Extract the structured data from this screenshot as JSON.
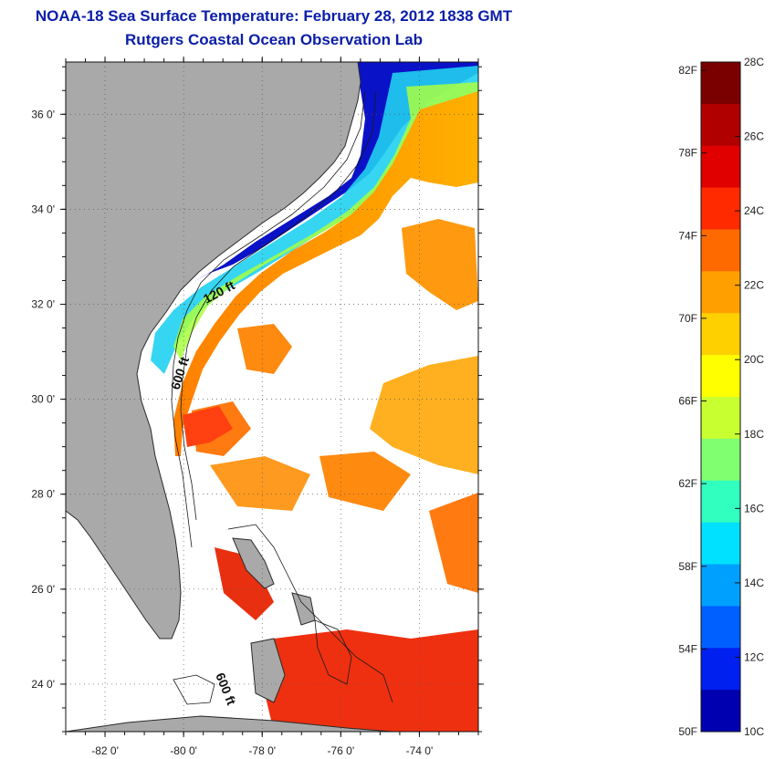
{
  "header": {
    "title": "NOAA-18 Sea Surface Temperature:  February 28, 2012 1838 GMT",
    "subtitle": "Rutgers Coastal Ocean Observation Lab"
  },
  "map": {
    "lon_range": [
      -83,
      -72.5
    ],
    "lat_range": [
      23,
      37.1
    ],
    "lon_ticks": [
      {
        "value": -82,
        "label": "-82 0'"
      },
      {
        "value": -80,
        "label": "-80 0'"
      },
      {
        "value": -78,
        "label": "-78 0'"
      },
      {
        "value": -76,
        "label": "-76 0'"
      },
      {
        "value": -74,
        "label": "-74 0'"
      }
    ],
    "lat_ticks": [
      {
        "value": 36,
        "label": "36 0'"
      },
      {
        "value": 34,
        "label": "34 0'"
      },
      {
        "value": 32,
        "label": "32 0'"
      },
      {
        "value": 30,
        "label": "30 0'"
      },
      {
        "value": 28,
        "label": "28 0'"
      },
      {
        "value": 26,
        "label": "26 0'"
      },
      {
        "value": 24,
        "label": "24 0'"
      }
    ],
    "grid": "dotted",
    "contour_labels": {
      "c120": "120 ft",
      "c600a": "600 ft",
      "c600b": "600 ft"
    },
    "colors": {
      "land": "#a9a9a9",
      "ocean_cloud": "#ffffff",
      "coast": "#2a2a2a"
    }
  },
  "colorbar": {
    "min_c": 10,
    "max_c": 28,
    "celsius_ticks": [
      {
        "value": 28,
        "label": "28C"
      },
      {
        "value": 26,
        "label": "26C"
      },
      {
        "value": 24,
        "label": "24C"
      },
      {
        "value": 22,
        "label": "22C"
      },
      {
        "value": 20,
        "label": "20C"
      },
      {
        "value": 18,
        "label": "18C"
      },
      {
        "value": 16,
        "label": "16C"
      },
      {
        "value": 14,
        "label": "14C"
      },
      {
        "value": 12,
        "label": "12C"
      },
      {
        "value": 10,
        "label": "10C"
      }
    ],
    "fahrenheit_ticks": [
      {
        "value": 82,
        "label": "82F"
      },
      {
        "value": 78,
        "label": "78F"
      },
      {
        "value": 74,
        "label": "74F"
      },
      {
        "value": 70,
        "label": "70F"
      },
      {
        "value": 66,
        "label": "66F"
      },
      {
        "value": 62,
        "label": "62F"
      },
      {
        "value": 58,
        "label": "58F"
      },
      {
        "value": 54,
        "label": "54F"
      },
      {
        "value": 50,
        "label": "50F"
      }
    ],
    "palette": [
      "#7a0000",
      "#b00000",
      "#e00000",
      "#ff2a00",
      "#ff6a00",
      "#ffa000",
      "#ffd000",
      "#ffff00",
      "#c8ff30",
      "#80ff70",
      "#30ffc0",
      "#00e0ff",
      "#00a0ff",
      "#0060ff",
      "#0020f0",
      "#0000b0"
    ]
  }
}
